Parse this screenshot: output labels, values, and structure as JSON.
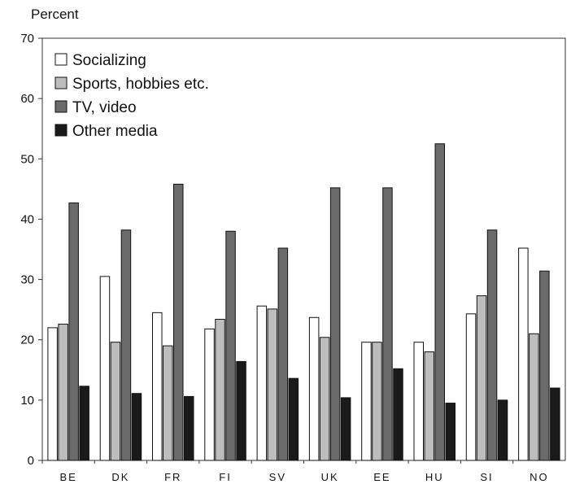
{
  "chart_data": {
    "type": "bar",
    "title": "",
    "xlabel": "",
    "ylabel": "Percent",
    "ylim": [
      0,
      70
    ],
    "yticks": [
      0,
      10,
      20,
      30,
      40,
      50,
      60,
      70
    ],
    "grid": false,
    "legend_position": "top-left",
    "categories": [
      "BE",
      "DK",
      "FR",
      "FI",
      "SV",
      "UK",
      "EE",
      "HU",
      "SI",
      "NO"
    ],
    "series": [
      {
        "name": "Socializing",
        "color": "#ffffff",
        "values": [
          22,
          30.5,
          24.5,
          21.8,
          25.6,
          23.7,
          19.6,
          19.6,
          24.3,
          35.2
        ]
      },
      {
        "name": "Sports, hobbies etc.",
        "color": "#bdbdbd",
        "values": [
          22.6,
          19.6,
          19,
          23.4,
          25.1,
          20.4,
          19.6,
          18,
          27.3,
          21
        ]
      },
      {
        "name": "TV, video",
        "color": "#6b6b6b",
        "values": [
          42.7,
          38.2,
          45.8,
          38,
          35.2,
          45.2,
          45.2,
          52.5,
          38.2,
          31.4
        ]
      },
      {
        "name": "Other media",
        "color": "#1a1a1a",
        "values": [
          12.3,
          11.1,
          10.6,
          16.4,
          13.6,
          10.4,
          15.2,
          9.5,
          10,
          12
        ]
      }
    ]
  }
}
